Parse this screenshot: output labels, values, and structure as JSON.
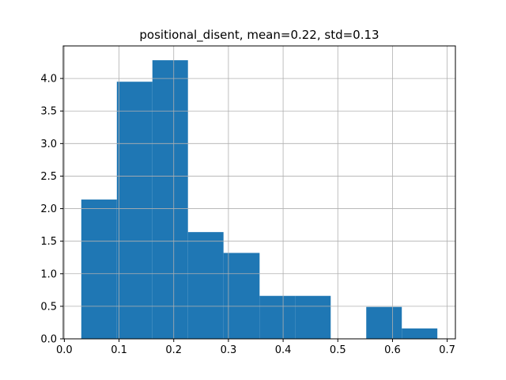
{
  "chart_data": {
    "type": "bar",
    "title": "positional_disent, mean=0.22, std=0.13",
    "xlabel": "",
    "ylabel": "",
    "xlim": [
      -0.002,
      0.715
    ],
    "ylim": [
      0,
      4.5
    ],
    "grid": true,
    "bar_color": "#1f77b4",
    "bins": [
      {
        "x0": 0.031,
        "x1": 0.096,
        "value": 2.14
      },
      {
        "x0": 0.096,
        "x1": 0.161,
        "value": 3.95
      },
      {
        "x0": 0.161,
        "x1": 0.226,
        "value": 4.28
      },
      {
        "x0": 0.226,
        "x1": 0.291,
        "value": 1.64
      },
      {
        "x0": 0.291,
        "x1": 0.357,
        "value": 1.32
      },
      {
        "x0": 0.357,
        "x1": 0.422,
        "value": 0.66
      },
      {
        "x0": 0.422,
        "x1": 0.487,
        "value": 0.66
      },
      {
        "x0": 0.487,
        "x1": 0.552,
        "value": 0.0
      },
      {
        "x0": 0.552,
        "x1": 0.617,
        "value": 0.49
      },
      {
        "x0": 0.617,
        "x1": 0.682,
        "value": 0.16
      }
    ],
    "xticks": [
      {
        "value": 0.0,
        "label": "0.0"
      },
      {
        "value": 0.1,
        "label": "0.1"
      },
      {
        "value": 0.2,
        "label": "0.2"
      },
      {
        "value": 0.3,
        "label": "0.3"
      },
      {
        "value": 0.4,
        "label": "0.4"
      },
      {
        "value": 0.5,
        "label": "0.5"
      },
      {
        "value": 0.6,
        "label": "0.6"
      },
      {
        "value": 0.7,
        "label": "0.7"
      }
    ],
    "yticks": [
      {
        "value": 0.0,
        "label": "0.0"
      },
      {
        "value": 0.5,
        "label": "0.5"
      },
      {
        "value": 1.0,
        "label": "1.0"
      },
      {
        "value": 1.5,
        "label": "1.5"
      },
      {
        "value": 2.0,
        "label": "2.0"
      },
      {
        "value": 2.5,
        "label": "2.5"
      },
      {
        "value": 3.0,
        "label": "3.0"
      },
      {
        "value": 3.5,
        "label": "3.5"
      },
      {
        "value": 4.0,
        "label": "4.0"
      }
    ]
  }
}
